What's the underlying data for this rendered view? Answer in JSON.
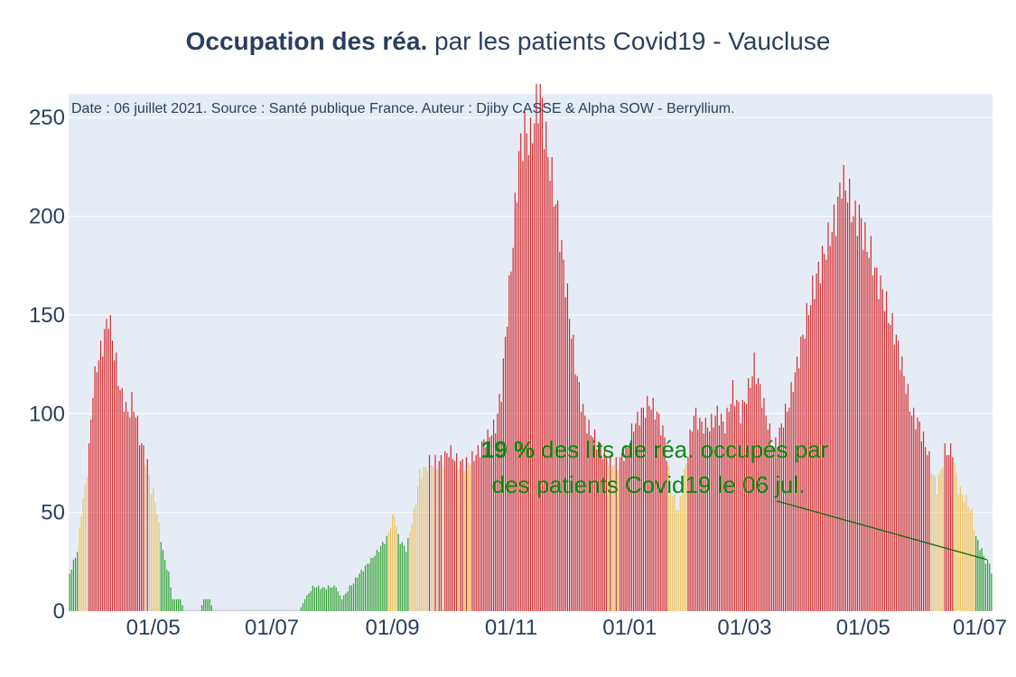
{
  "title": {
    "bold": "Occupation des réa.",
    "rest": " par les patients Covid19 - Vaucluse"
  },
  "annotation": {
    "source": "Date : 06 juillet 2021. Source : Santé publique France. Auteur : Djiby CASSE & Alpha SOW - Berryllium.",
    "percent": "19  %",
    "line1_rest": " des lits de réa. occupés par",
    "line2": "des patients Covid19 le 06 jul."
  },
  "colors": {
    "plot_background": "#e5ecf6",
    "gridline": "#ffffff",
    "text": "#2a3f5f",
    "green_bar": "#2ca02c",
    "yellow_bar": "#f0c35e",
    "red_bar": "#d62728",
    "annotation_text": "#0b8a0b",
    "arrow": "#0b6b0b"
  },
  "chart_data": {
    "type": "bar",
    "x_axis": {
      "start": "2020-03-19",
      "end": "2021-07-06",
      "tick_labels": [
        "01/05",
        "01/07",
        "01/09",
        "01/11",
        "01/01",
        "01/03",
        "01/05",
        "01/07"
      ],
      "tick_dates": [
        "2020-05-01",
        "2020-07-01",
        "2020-09-01",
        "2020-11-01",
        "2021-01-01",
        "2021-03-01",
        "2021-05-01",
        "2021-07-01"
      ]
    },
    "y_axis": {
      "range": [
        0,
        262
      ],
      "tick_values": [
        0,
        50,
        100,
        150,
        200,
        250
      ],
      "grid": true
    },
    "color_rule": "green when value < 40, yellow when 40-75, red when > 75",
    "keyframes": [
      [
        "2020-03-19",
        19
      ],
      [
        "2020-03-21",
        25
      ],
      [
        "2020-03-23",
        31
      ],
      [
        "2020-03-25",
        50
      ],
      [
        "2020-03-27",
        62
      ],
      [
        "2020-03-29",
        82
      ],
      [
        "2020-03-31",
        112
      ],
      [
        "2020-04-02",
        125
      ],
      [
        "2020-04-04",
        131
      ],
      [
        "2020-04-06",
        140
      ],
      [
        "2020-04-08",
        150
      ],
      [
        "2020-04-10",
        138
      ],
      [
        "2020-04-12",
        125
      ],
      [
        "2020-04-14",
        112
      ],
      [
        "2020-04-16",
        106
      ],
      [
        "2020-04-18",
        100
      ],
      [
        "2020-04-20",
        106
      ],
      [
        "2020-04-22",
        100
      ],
      [
        "2020-04-24",
        88
      ],
      [
        "2020-04-26",
        81
      ],
      [
        "2020-04-28",
        75
      ],
      [
        "2020-04-30",
        62
      ],
      [
        "2020-05-02",
        56
      ],
      [
        "2020-05-05",
        37
      ],
      [
        "2020-05-07",
        25
      ],
      [
        "2020-05-09",
        19
      ],
      [
        "2020-05-11",
        6
      ],
      [
        "2020-05-15",
        6
      ],
      [
        "2020-05-17",
        0
      ],
      [
        "2020-05-25",
        0
      ],
      [
        "2020-05-27",
        6
      ],
      [
        "2020-05-30",
        6
      ],
      [
        "2020-06-01",
        0
      ],
      [
        "2020-07-15",
        0
      ],
      [
        "2020-07-18",
        6
      ],
      [
        "2020-07-22",
        12
      ],
      [
        "2020-08-03",
        12
      ],
      [
        "2020-08-06",
        6
      ],
      [
        "2020-08-10",
        12
      ],
      [
        "2020-08-15",
        19
      ],
      [
        "2020-08-20",
        25
      ],
      [
        "2020-08-25",
        31
      ],
      [
        "2020-08-29",
        37
      ],
      [
        "2020-09-02",
        50
      ],
      [
        "2020-09-04",
        37
      ],
      [
        "2020-09-08",
        31
      ],
      [
        "2020-09-12",
        50
      ],
      [
        "2020-09-15",
        69
      ],
      [
        "2020-09-20",
        75
      ],
      [
        "2020-09-25",
        75
      ],
      [
        "2020-09-30",
        81
      ],
      [
        "2020-10-05",
        75
      ],
      [
        "2020-10-10",
        75
      ],
      [
        "2020-10-15",
        81
      ],
      [
        "2020-10-20",
        88
      ],
      [
        "2020-10-24",
        94
      ],
      [
        "2020-10-27",
        112
      ],
      [
        "2020-10-30",
        150
      ],
      [
        "2020-11-02",
        188
      ],
      [
        "2020-11-05",
        231
      ],
      [
        "2020-11-08",
        244
      ],
      [
        "2020-11-11",
        238
      ],
      [
        "2020-11-14",
        256
      ],
      [
        "2020-11-16",
        262
      ],
      [
        "2020-11-19",
        238
      ],
      [
        "2020-11-22",
        219
      ],
      [
        "2020-11-25",
        200
      ],
      [
        "2020-11-28",
        175
      ],
      [
        "2020-12-01",
        150
      ],
      [
        "2020-12-04",
        125
      ],
      [
        "2020-12-07",
        106
      ],
      [
        "2020-12-10",
        94
      ],
      [
        "2020-12-14",
        88
      ],
      [
        "2020-12-18",
        81
      ],
      [
        "2020-12-22",
        75
      ],
      [
        "2020-12-26",
        75
      ],
      [
        "2020-12-30",
        81
      ],
      [
        "2021-01-03",
        94
      ],
      [
        "2021-01-07",
        100
      ],
      [
        "2021-01-11",
        106
      ],
      [
        "2021-01-15",
        100
      ],
      [
        "2021-01-19",
        88
      ],
      [
        "2021-01-22",
        62
      ],
      [
        "2021-01-26",
        50
      ],
      [
        "2021-01-30",
        75
      ],
      [
        "2021-02-03",
        100
      ],
      [
        "2021-02-07",
        94
      ],
      [
        "2021-02-11",
        94
      ],
      [
        "2021-02-15",
        100
      ],
      [
        "2021-02-19",
        94
      ],
      [
        "2021-02-23",
        112
      ],
      [
        "2021-02-27",
        100
      ],
      [
        "2021-03-03",
        112
      ],
      [
        "2021-03-06",
        125
      ],
      [
        "2021-03-09",
        112
      ],
      [
        "2021-03-12",
        100
      ],
      [
        "2021-03-16",
        81
      ],
      [
        "2021-03-20",
        94
      ],
      [
        "2021-03-24",
        106
      ],
      [
        "2021-03-28",
        125
      ],
      [
        "2021-04-01",
        144
      ],
      [
        "2021-04-05",
        162
      ],
      [
        "2021-04-09",
        175
      ],
      [
        "2021-04-13",
        188
      ],
      [
        "2021-04-17",
        200
      ],
      [
        "2021-04-20",
        219
      ],
      [
        "2021-04-23",
        213
      ],
      [
        "2021-04-26",
        200
      ],
      [
        "2021-04-29",
        200
      ],
      [
        "2021-05-02",
        188
      ],
      [
        "2021-05-05",
        181
      ],
      [
        "2021-05-08",
        169
      ],
      [
        "2021-05-11",
        162
      ],
      [
        "2021-05-14",
        150
      ],
      [
        "2021-05-18",
        138
      ],
      [
        "2021-05-22",
        119
      ],
      [
        "2021-05-26",
        100
      ],
      [
        "2021-05-30",
        94
      ],
      [
        "2021-06-03",
        81
      ],
      [
        "2021-06-06",
        69
      ],
      [
        "2021-06-08",
        62
      ],
      [
        "2021-06-12",
        81
      ],
      [
        "2021-06-16",
        81
      ],
      [
        "2021-06-19",
        62
      ],
      [
        "2021-06-23",
        56
      ],
      [
        "2021-06-26",
        50
      ],
      [
        "2021-06-28",
        37
      ],
      [
        "2021-07-01",
        31
      ],
      [
        "2021-07-03",
        25
      ],
      [
        "2021-07-05",
        25
      ],
      [
        "2021-07-06",
        19
      ]
    ]
  }
}
